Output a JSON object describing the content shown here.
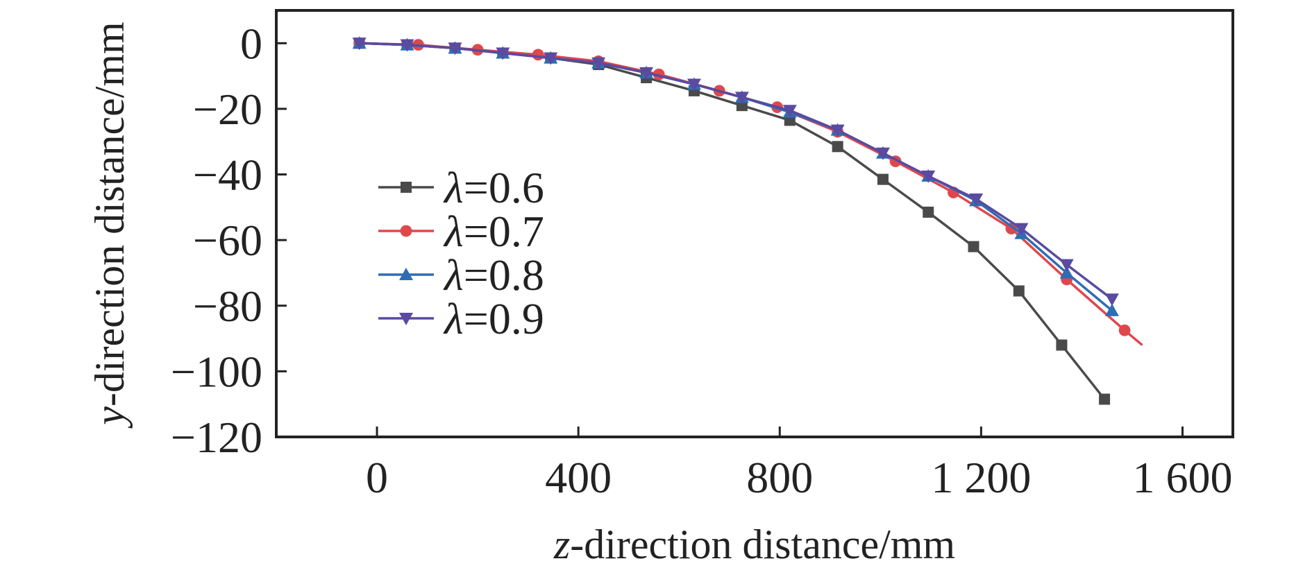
{
  "chart_data": {
    "type": "line",
    "title": "",
    "xlabel_italic": "z",
    "xlabel_rest": "-direction distance/mm",
    "ylabel_italic": "y",
    "ylabel_rest": "-direction distance/mm",
    "xlim": [
      -200,
      1700
    ],
    "ylim": [
      -120,
      10
    ],
    "xticks": [
      0,
      400,
      800,
      1200,
      1600
    ],
    "xtick_labels": [
      "0",
      "400",
      "800",
      "1 200",
      "1 600"
    ],
    "yticks": [
      0,
      -20,
      -40,
      -60,
      -80,
      -100,
      -120
    ],
    "ytick_labels": [
      "0",
      "−20",
      "−40",
      "−60",
      "−80",
      "−100",
      "−120"
    ],
    "grid": false,
    "legend_position": "left",
    "series": [
      {
        "name": "λ=0.6",
        "lambda_symbol": "λ",
        "lambda_value": "=0.6",
        "color": "#4a4a4a",
        "marker": "square",
        "x": [
          -35,
          60,
          155,
          250,
          345,
          440,
          535,
          630,
          725,
          820,
          915,
          1005,
          1095,
          1185,
          1275,
          1360,
          1445
        ],
        "y": [
          0,
          -0.5,
          -1.5,
          -3,
          -4.5,
          -6.5,
          -10.5,
          -14.5,
          -19,
          -23.5,
          -31.5,
          -41.5,
          -51.5,
          -62,
          -75.5,
          -92,
          -108.5
        ]
      },
      {
        "name": "λ=0.7",
        "lambda_symbol": "λ",
        "lambda_value": "=0.7",
        "color": "#e0474c",
        "marker": "circle",
        "x": [
          -35,
          82,
          200,
          320,
          440,
          560,
          680,
          795,
          915,
          1030,
          1145,
          1260,
          1370,
          1485
        ],
        "y": [
          0,
          -0.5,
          -2,
          -3.5,
          -5.5,
          -9.5,
          -14.5,
          -19.5,
          -27,
          -36,
          -45.5,
          -56.5,
          -72,
          -87.5
        ],
        "line_end": [
          1520,
          -92
        ]
      },
      {
        "name": "λ=0.8",
        "lambda_symbol": "λ",
        "lambda_value": "=0.8",
        "color": "#2e6db4",
        "marker": "triangle-up",
        "x": [
          -35,
          60,
          155,
          250,
          345,
          440,
          535,
          630,
          725,
          820,
          915,
          1005,
          1095,
          1190,
          1280,
          1370,
          1460
        ],
        "y": [
          0,
          -0.5,
          -1.5,
          -3,
          -4.5,
          -6,
          -9,
          -12.5,
          -16.5,
          -21,
          -26.5,
          -33.5,
          -40.5,
          -48,
          -58,
          -70,
          -81.5
        ]
      },
      {
        "name": "λ=0.9",
        "lambda_symbol": "λ",
        "lambda_value": "=0.9",
        "color": "#5a4aa0",
        "marker": "triangle-down",
        "x": [
          -35,
          60,
          155,
          250,
          345,
          440,
          535,
          630,
          725,
          820,
          915,
          1005,
          1095,
          1190,
          1280,
          1370,
          1460
        ],
        "y": [
          0,
          -0.5,
          -1.5,
          -3,
          -4.5,
          -6,
          -9,
          -12.5,
          -16.5,
          -20.5,
          -26.5,
          -33.5,
          -40.5,
          -47.5,
          -56.5,
          -67.5,
          -78
        ]
      }
    ]
  }
}
